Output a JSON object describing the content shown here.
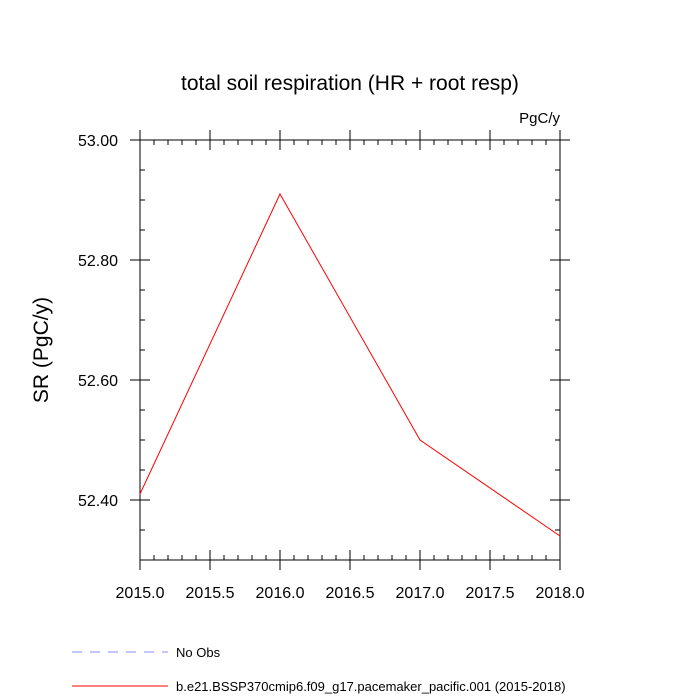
{
  "chart_data": {
    "type": "line",
    "title": "total soil respiration (HR + root resp)",
    "units_label": "PgC/y",
    "ylabel": "SR  (PgC/y)",
    "xlabel": "",
    "xlim": [
      2015.0,
      2018.0
    ],
    "ylim": [
      52.3,
      53.0
    ],
    "x_ticks": [
      2015.0,
      2015.5,
      2016.0,
      2016.5,
      2017.0,
      2017.5,
      2018.0
    ],
    "x_tick_labels": [
      "2015.0",
      "2015.5",
      "2016.0",
      "2016.5",
      "2017.0",
      "2017.5",
      "2018.0"
    ],
    "y_ticks": [
      52.4,
      52.6,
      52.8,
      53.0
    ],
    "y_tick_labels": [
      "52.40",
      "52.60",
      "52.80",
      "53.00"
    ],
    "y_minor_step": 0.05,
    "x_minor_step": 0.1,
    "grid": false,
    "legend_position": "bottom-left",
    "series": [
      {
        "name": "b.e21.BSSP370cmip6.f09_g17.pacemaker_pacific.001 (2015-2018)",
        "color": "#ff0000",
        "dash": "solid",
        "x": [
          2015.0,
          2016.0,
          2017.0,
          2018.0
        ],
        "y": [
          52.41,
          52.91,
          52.5,
          52.34
        ]
      }
    ],
    "legend": [
      {
        "name": "No Obs",
        "color": "#8888ff",
        "dash": "dashed"
      },
      {
        "name": "b.e21.BSSP370cmip6.f09_g17.pacemaker_pacific.001 (2015-2018)",
        "color": "#ff0000",
        "dash": "solid"
      }
    ]
  }
}
